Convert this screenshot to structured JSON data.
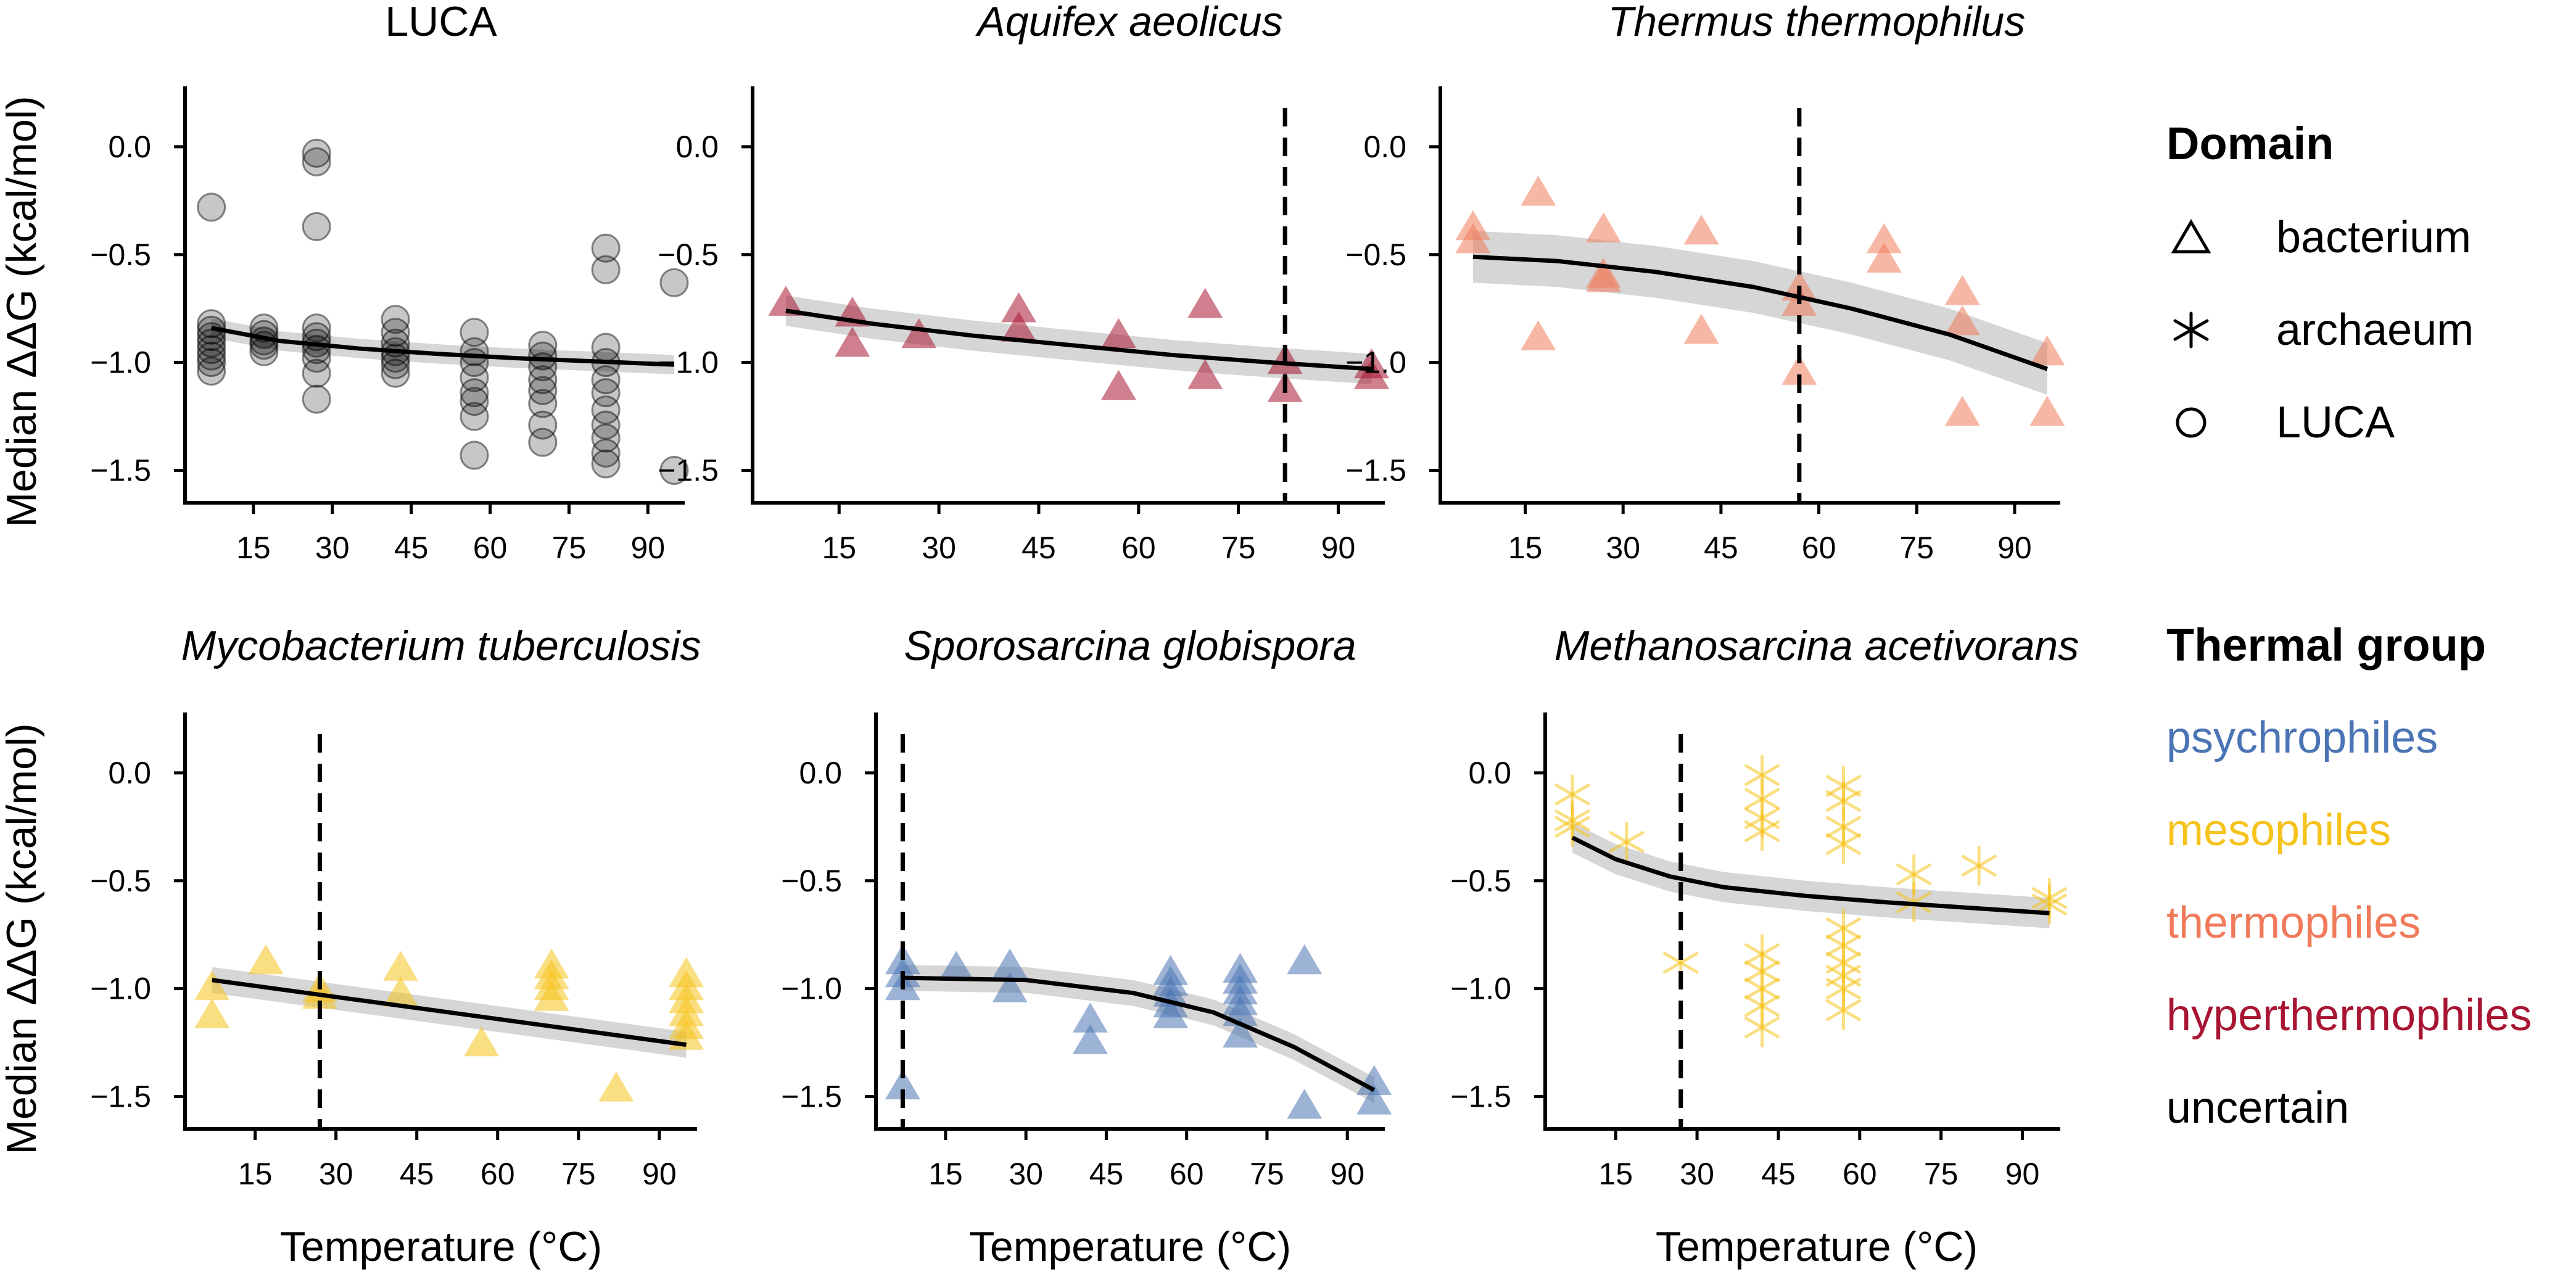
{
  "ylabel": "Median ΔΔG (kcal/mol)",
  "xlabel": "Temperature (°C)",
  "legend": {
    "domain_title": "Domain",
    "domain_items": [
      {
        "label": "bacterium",
        "marker": "triangle-icon"
      },
      {
        "label": "archaeum",
        "marker": "asterisk-icon"
      },
      {
        "label": "LUCA",
        "marker": "circle-icon"
      }
    ],
    "group_title": "Thermal group",
    "groups": [
      {
        "label": "psychrophiles",
        "color": "#4a74b4"
      },
      {
        "label": "mesophiles",
        "color": "#f6c21c"
      },
      {
        "label": "thermophiles",
        "color": "#f07b5b"
      },
      {
        "label": "hyperthermophiles",
        "color": "#a81532"
      },
      {
        "label": "uncertain",
        "color": "#000000"
      }
    ]
  },
  "chart_data": [
    {
      "type": "scatter",
      "title": "LUCA",
      "italic": false,
      "marker": "circle",
      "color": "#000000",
      "xlim": [
        2,
        97
      ],
      "ylim": [
        -1.65,
        0.28
      ],
      "xticks": [
        15,
        30,
        45,
        60,
        75,
        90
      ],
      "yticks": [
        0.0,
        -0.5,
        -1.0,
        -1.5
      ],
      "ogt": null,
      "points": [
        [
          7,
          -0.28
        ],
        [
          7,
          -0.82
        ],
        [
          7,
          -0.85
        ],
        [
          7,
          -0.88
        ],
        [
          7,
          -0.91
        ],
        [
          7,
          -0.94
        ],
        [
          7,
          -0.97
        ],
        [
          7,
          -1.0
        ],
        [
          7,
          -1.04
        ],
        [
          17,
          -0.84
        ],
        [
          17,
          -0.87
        ],
        [
          17,
          -0.9
        ],
        [
          17,
          -0.92
        ],
        [
          17,
          -0.95
        ],
        [
          27,
          -0.03
        ],
        [
          27,
          -0.07
        ],
        [
          27,
          -0.37
        ],
        [
          27,
          -0.84
        ],
        [
          27,
          -0.88
        ],
        [
          27,
          -0.91
        ],
        [
          27,
          -0.94
        ],
        [
          27,
          -0.98
        ],
        [
          27,
          -1.05
        ],
        [
          27,
          -1.17
        ],
        [
          42,
          -0.8
        ],
        [
          42,
          -0.86
        ],
        [
          42,
          -0.91
        ],
        [
          42,
          -0.95
        ],
        [
          42,
          -0.98
        ],
        [
          42,
          -1.01
        ],
        [
          42,
          -1.05
        ],
        [
          57,
          -0.86
        ],
        [
          57,
          -0.95
        ],
        [
          57,
          -1.0
        ],
        [
          57,
          -1.07
        ],
        [
          57,
          -1.14
        ],
        [
          57,
          -1.18
        ],
        [
          57,
          -1.25
        ],
        [
          57,
          -1.43
        ],
        [
          70,
          -0.92
        ],
        [
          70,
          -0.97
        ],
        [
          70,
          -1.02
        ],
        [
          70,
          -1.08
        ],
        [
          70,
          -1.13
        ],
        [
          70,
          -1.19
        ],
        [
          70,
          -1.29
        ],
        [
          70,
          -1.37
        ],
        [
          82,
          -0.47
        ],
        [
          82,
          -0.57
        ],
        [
          82,
          -0.93
        ],
        [
          82,
          -1.0
        ],
        [
          82,
          -1.08
        ],
        [
          82,
          -1.14
        ],
        [
          82,
          -1.22
        ],
        [
          82,
          -1.29
        ],
        [
          82,
          -1.35
        ],
        [
          82,
          -1.42
        ],
        [
          82,
          -1.47
        ],
        [
          95,
          -0.63
        ],
        [
          95,
          -1.5
        ]
      ],
      "trend": [
        [
          7,
          -0.84
        ],
        [
          20,
          -0.9
        ],
        [
          35,
          -0.935
        ],
        [
          50,
          -0.96
        ],
        [
          65,
          -0.98
        ],
        [
          80,
          -0.995
        ],
        [
          95,
          -1.01
        ]
      ],
      "band": 0.045
    },
    {
      "type": "scatter",
      "title": "Aquifex aeolicus",
      "italic": true,
      "marker": "triangle",
      "color": "#a81532",
      "xlim": [
        2,
        97
      ],
      "ylim": [
        -1.65,
        0.28
      ],
      "xticks": [
        15,
        30,
        45,
        60,
        75,
        90
      ],
      "yticks": [
        0.0,
        -0.5,
        -1.0,
        -1.5
      ],
      "ogt": 82,
      "points": [
        [
          7,
          -0.73
        ],
        [
          17,
          -0.78
        ],
        [
          17,
          -0.92
        ],
        [
          27,
          -0.88
        ],
        [
          42,
          -0.76
        ],
        [
          42,
          -0.85
        ],
        [
          57,
          -0.88
        ],
        [
          57,
          -1.12
        ],
        [
          70,
          -0.74
        ],
        [
          70,
          -1.07
        ],
        [
          82,
          -1.0
        ],
        [
          82,
          -1.13
        ],
        [
          95,
          -1.02
        ],
        [
          95,
          -1.07
        ]
      ],
      "trend": [
        [
          7,
          -0.76
        ],
        [
          20,
          -0.82
        ],
        [
          35,
          -0.875
        ],
        [
          50,
          -0.92
        ],
        [
          65,
          -0.965
        ],
        [
          80,
          -1.0
        ],
        [
          95,
          -1.03
        ]
      ],
      "band": 0.07
    },
    {
      "type": "scatter",
      "title": "Thermus thermophilus",
      "italic": true,
      "marker": "triangle",
      "color": "#f07b5b",
      "xlim": [
        2,
        97
      ],
      "ylim": [
        -1.65,
        0.28
      ],
      "xticks": [
        15,
        30,
        45,
        60,
        75,
        90
      ],
      "yticks": [
        0.0,
        -0.5,
        -1.0,
        -1.5
      ],
      "ogt": 57,
      "points": [
        [
          7,
          -0.38
        ],
        [
          7,
          -0.44
        ],
        [
          17,
          -0.22
        ],
        [
          17,
          -0.89
        ],
        [
          27,
          -0.39
        ],
        [
          27,
          -0.6
        ],
        [
          27,
          -0.62
        ],
        [
          42,
          -0.4
        ],
        [
          42,
          -0.86
        ],
        [
          57,
          -0.66
        ],
        [
          57,
          -0.73
        ],
        [
          57,
          -1.05
        ],
        [
          70,
          -0.44
        ],
        [
          70,
          -0.53
        ],
        [
          82,
          -0.68
        ],
        [
          82,
          -0.82
        ],
        [
          82,
          -1.24
        ],
        [
          95,
          -0.96
        ],
        [
          95,
          -1.24
        ]
      ],
      "trend": [
        [
          7,
          -0.51
        ],
        [
          20,
          -0.53
        ],
        [
          35,
          -0.58
        ],
        [
          50,
          -0.65
        ],
        [
          65,
          -0.75
        ],
        [
          80,
          -0.87
        ],
        [
          95,
          -1.03
        ]
      ],
      "band": 0.12
    },
    {
      "type": "scatter",
      "title": "Mycobacterium tuberculosis",
      "italic": true,
      "marker": "triangle",
      "color": "#f6c21c",
      "xlim": [
        2,
        97
      ],
      "ylim": [
        -1.65,
        0.28
      ],
      "xticks": [
        15,
        30,
        45,
        60,
        75,
        90
      ],
      "yticks": [
        0.0,
        -0.5,
        -1.0,
        -1.5
      ],
      "ogt": 27,
      "points": [
        [
          7,
          -1.0
        ],
        [
          7,
          -1.13
        ],
        [
          17,
          -0.88
        ],
        [
          27,
          -1.01
        ],
        [
          27,
          -1.04
        ],
        [
          42,
          -0.91
        ],
        [
          42,
          -1.03
        ],
        [
          57,
          -1.26
        ],
        [
          70,
          -0.9
        ],
        [
          70,
          -0.95
        ],
        [
          70,
          -1.0
        ],
        [
          70,
          -1.05
        ],
        [
          82,
          -1.47
        ],
        [
          95,
          -0.94
        ],
        [
          95,
          -1.0
        ],
        [
          95,
          -1.06
        ],
        [
          95,
          -1.12
        ],
        [
          95,
          -1.18
        ],
        [
          95,
          -1.23
        ]
      ],
      "trend": [
        [
          7,
          -0.96
        ],
        [
          95,
          -1.26
        ]
      ],
      "band": 0.06
    },
    {
      "type": "scatter",
      "title": "Sporosarcina globispora",
      "italic": true,
      "marker": "triangle",
      "color": "#4a74b4",
      "xlim": [
        2,
        97
      ],
      "ylim": [
        -1.65,
        0.28
      ],
      "xticks": [
        15,
        30,
        45,
        60,
        75,
        90
      ],
      "yticks": [
        0.0,
        -0.5,
        -1.0,
        -1.5
      ],
      "ogt": 7,
      "points": [
        [
          7,
          -0.88
        ],
        [
          7,
          -0.94
        ],
        [
          7,
          -1.0
        ],
        [
          7,
          -1.46
        ],
        [
          17,
          -0.91
        ],
        [
          27,
          -0.9
        ],
        [
          27,
          -1.01
        ],
        [
          42,
          -1.15
        ],
        [
          42,
          -1.25
        ],
        [
          57,
          -0.93
        ],
        [
          57,
          -0.98
        ],
        [
          57,
          -1.03
        ],
        [
          57,
          -1.08
        ],
        [
          57,
          -1.13
        ],
        [
          70,
          -0.92
        ],
        [
          70,
          -0.97
        ],
        [
          70,
          -1.02
        ],
        [
          70,
          -1.07
        ],
        [
          70,
          -1.12
        ],
        [
          70,
          -1.22
        ],
        [
          82,
          -0.88
        ],
        [
          82,
          -1.55
        ],
        [
          95,
          -1.44
        ],
        [
          95,
          -1.53
        ]
      ],
      "trend": [
        [
          7,
          -0.95
        ],
        [
          30,
          -0.96
        ],
        [
          50,
          -1.02
        ],
        [
          65,
          -1.11
        ],
        [
          80,
          -1.27
        ],
        [
          95,
          -1.47
        ]
      ],
      "band": 0.06
    },
    {
      "type": "scatter",
      "title": "Methanosarcina acetivorans",
      "italic": true,
      "marker": "asterisk",
      "color": "#f6c21c",
      "xlim": [
        2,
        97
      ],
      "ylim": [
        -1.65,
        0.28
      ],
      "xticks": [
        15,
        30,
        45,
        60,
        75,
        90
      ],
      "yticks": [
        0.0,
        -0.5,
        -1.0,
        -1.5
      ],
      "ogt": 27,
      "points": [
        [
          7,
          -0.1
        ],
        [
          7,
          -0.22
        ],
        [
          7,
          -0.25
        ],
        [
          17,
          -0.32
        ],
        [
          27,
          -0.88
        ],
        [
          42,
          -0.01
        ],
        [
          42,
          -0.12
        ],
        [
          42,
          -0.21
        ],
        [
          42,
          -0.27
        ],
        [
          42,
          -0.84
        ],
        [
          42,
          -0.92
        ],
        [
          42,
          -1.0
        ],
        [
          42,
          -1.08
        ],
        [
          42,
          -1.18
        ],
        [
          57,
          -0.06
        ],
        [
          57,
          -0.13
        ],
        [
          57,
          -0.25
        ],
        [
          57,
          -0.33
        ],
        [
          57,
          -0.72
        ],
        [
          57,
          -0.8
        ],
        [
          57,
          -0.88
        ],
        [
          57,
          -0.94
        ],
        [
          57,
          -1.0
        ],
        [
          57,
          -1.1
        ],
        [
          70,
          -0.47
        ],
        [
          70,
          -0.6
        ],
        [
          82,
          -0.43
        ],
        [
          95,
          -0.58
        ],
        [
          95,
          -0.61
        ]
      ],
      "trend": [
        [
          7,
          -0.3
        ],
        [
          15,
          -0.4
        ],
        [
          25,
          -0.48
        ],
        [
          35,
          -0.53
        ],
        [
          50,
          -0.57
        ],
        [
          65,
          -0.6
        ],
        [
          80,
          -0.625
        ],
        [
          95,
          -0.65
        ]
      ],
      "band": 0.07
    }
  ]
}
